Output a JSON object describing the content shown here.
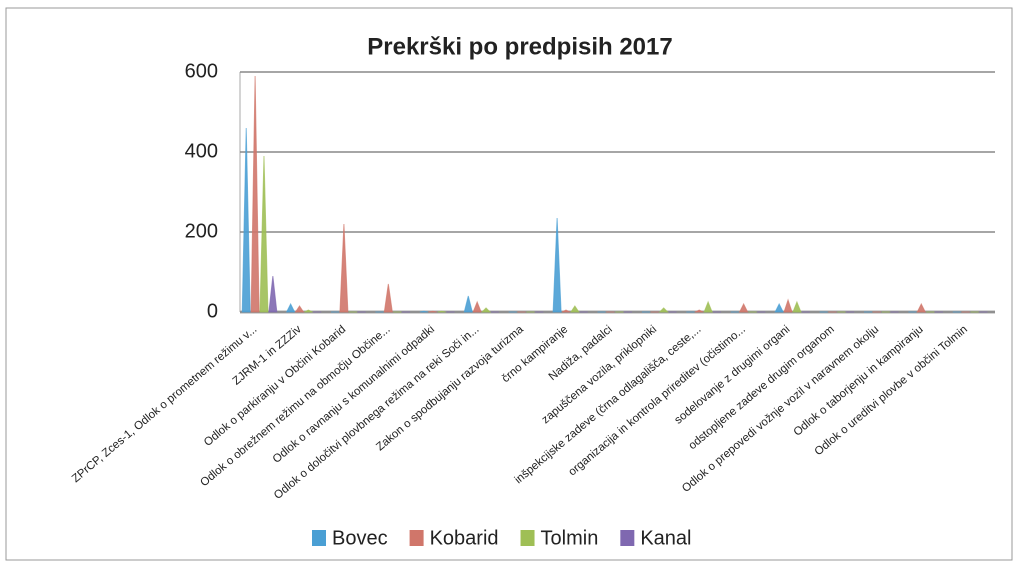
{
  "chart_data": {
    "type": "bar",
    "title": "Prekrški po predpisih 2017",
    "categories": [
      "ZPrCP, Zces-1, Odlok o prometnem režimu v...",
      "ZJRM-1 in ZZZiv",
      "Odlok o parkiranju  v Občini Kobarid",
      "Odlok o obrežnem režimu na območju Občine...",
      "Odlok o ravnanju s komunalnimi odpadki",
      "Odlok o določitvi plovbnega režima na reki Soči in...",
      "Zakon o spodbujanju razvoja turizma",
      "črno kampiranje",
      "Nadiža, padalci",
      "zapuščena vozila, priklopniki",
      "inšpekcijske zadeve (črna odlagališča, ceste,...",
      "organizacija in kontrola prireditev (očistimo...",
      "sodelovanje z drugimi organi",
      "odstopljene zadeve drugim organom",
      "Odlok o prepovedi vožnje vozil v naravnem okolju",
      "Odlok o taborjenju in kampiranju",
      "Odlok o ureditvi plovbe v občini Tolmin"
    ],
    "series": [
      {
        "name": "Bovec",
        "color": "#4a9fd4",
        "values": [
          460,
          20,
          0,
          0,
          2,
          40,
          0,
          235,
          0,
          0,
          0,
          0,
          20,
          0,
          0,
          0,
          0
        ]
      },
      {
        "name": "Kobarid",
        "color": "#d0766a",
        "values": [
          590,
          15,
          220,
          70,
          2,
          25,
          0,
          5,
          0,
          0,
          5,
          20,
          30,
          0,
          0,
          20,
          0
        ]
      },
      {
        "name": "Tolmin",
        "color": "#9fbf55",
        "values": [
          390,
          5,
          0,
          0,
          2,
          10,
          0,
          15,
          0,
          10,
          25,
          0,
          25,
          0,
          0,
          0,
          0
        ]
      },
      {
        "name": "Kanal",
        "color": "#7f68b0",
        "values": [
          90,
          0,
          0,
          0,
          0,
          0,
          0,
          0,
          0,
          0,
          0,
          0,
          0,
          0,
          0,
          0,
          0
        ]
      }
    ],
    "ylim": [
      0,
      600
    ],
    "yticks": [
      0,
      200,
      400,
      600
    ],
    "grid": true,
    "legend": "bottom"
  }
}
